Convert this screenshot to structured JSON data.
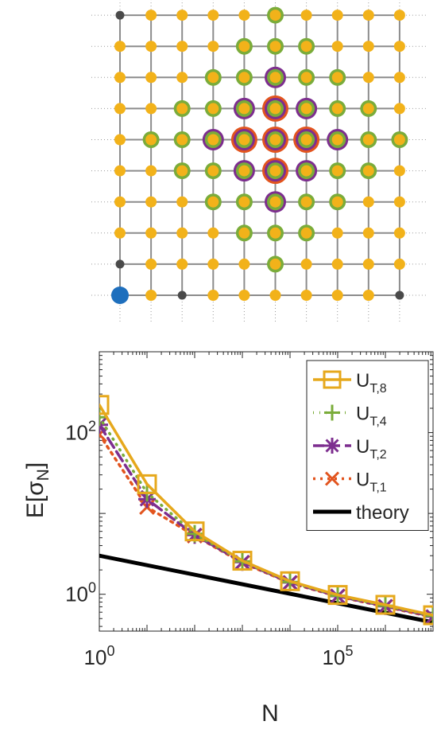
{
  "lattice": {
    "columns": 10,
    "rows": 10,
    "site_colors": {
      "inactive": "#4a4a4a",
      "active": "#f2b21a",
      "origin": "#1e6fbd",
      "U_T_8": "#f2b21a",
      "U_T_4": "#7aac3a",
      "U_T_2": "#7d2e8f",
      "U_T_1": "#e2541e"
    },
    "inactive_sites": [
      [
        0,
        0
      ],
      [
        0,
        1
      ],
      [
        0,
        9
      ],
      [
        2,
        0
      ],
      [
        9,
        0
      ]
    ],
    "origin_site": [
      0,
      0
    ],
    "center_site": [
      5,
      5
    ],
    "rings": [
      {
        "series": "U_T,1",
        "sites": [
          [
            5,
            6
          ],
          [
            4,
            5
          ],
          [
            5,
            5
          ],
          [
            6,
            5
          ],
          [
            5,
            4
          ]
        ]
      },
      {
        "series": "U_T,2",
        "sites": [
          [
            5,
            7
          ],
          [
            4,
            6
          ],
          [
            5,
            6
          ],
          [
            6,
            6
          ],
          [
            3,
            5
          ],
          [
            4,
            5
          ],
          [
            5,
            5
          ],
          [
            6,
            5
          ],
          [
            7,
            5
          ],
          [
            4,
            4
          ],
          [
            5,
            4
          ],
          [
            6,
            4
          ],
          [
            5,
            3
          ]
        ]
      },
      {
        "series": "U_T,4",
        "sites": [
          [
            5,
            9
          ],
          [
            4,
            8
          ],
          [
            5,
            8
          ],
          [
            6,
            8
          ],
          [
            3,
            7
          ],
          [
            4,
            7
          ],
          [
            5,
            7
          ],
          [
            6,
            7
          ],
          [
            7,
            7
          ],
          [
            2,
            6
          ],
          [
            3,
            6
          ],
          [
            4,
            6
          ],
          [
            5,
            6
          ],
          [
            6,
            6
          ],
          [
            7,
            6
          ],
          [
            8,
            6
          ],
          [
            1,
            5
          ],
          [
            2,
            5
          ],
          [
            3,
            5
          ],
          [
            4,
            5
          ],
          [
            5,
            5
          ],
          [
            6,
            5
          ],
          [
            7,
            5
          ],
          [
            8,
            5
          ],
          [
            9,
            5
          ],
          [
            2,
            4
          ],
          [
            3,
            4
          ],
          [
            4,
            4
          ],
          [
            5,
            4
          ],
          [
            6,
            4
          ],
          [
            7,
            4
          ],
          [
            8,
            4
          ],
          [
            3,
            3
          ],
          [
            4,
            3
          ],
          [
            5,
            3
          ],
          [
            6,
            3
          ],
          [
            7,
            3
          ],
          [
            4,
            2
          ],
          [
            5,
            2
          ],
          [
            6,
            2
          ],
          [
            5,
            1
          ]
        ]
      }
    ]
  },
  "chart_data": {
    "type": "line",
    "x_scale": "log",
    "y_scale": "log",
    "xlabel": "N",
    "ylabel_main": "E[σ",
    "ylabel_sub": "N",
    "ylabel_close": "]",
    "xlim": [
      1,
      10000000
    ],
    "ylim": [
      0.35,
      1000
    ],
    "x_ticks": [
      {
        "value": 1,
        "base": "10",
        "exp": "0"
      },
      {
        "value": 100000,
        "base": "10",
        "exp": "5"
      }
    ],
    "y_ticks": [
      {
        "value": 1,
        "base": "10",
        "exp": "0"
      },
      {
        "value": 100,
        "base": "10",
        "exp": "2"
      }
    ],
    "grid": false,
    "legend_position": "top-right",
    "series": [
      {
        "name": "U",
        "sub": "T,8",
        "color": "#e6a81c",
        "marker": "square",
        "dash": "",
        "width": 3.5,
        "x": [
          1,
          10,
          100,
          1000,
          10000,
          100000,
          1000000,
          10000000
        ],
        "y": [
          220,
          23,
          6.0,
          2.6,
          1.45,
          0.98,
          0.74,
          0.55
        ]
      },
      {
        "name": "U",
        "sub": "T,4",
        "color": "#7aac3a",
        "marker": "plus",
        "dash": "1,7",
        "width": 3.5,
        "x": [
          1,
          10,
          100,
          1000,
          10000,
          100000,
          1000000,
          10000000
        ],
        "y": [
          155,
          18,
          5.6,
          2.55,
          1.42,
          0.96,
          0.72,
          0.54
        ]
      },
      {
        "name": "U",
        "sub": "T,2",
        "color": "#7d2e8f",
        "marker": "asterisk",
        "dash": "14,6",
        "width": 3.5,
        "x": [
          1,
          10,
          100,
          1000,
          10000,
          100000,
          1000000,
          10000000
        ],
        "y": [
          125,
          15,
          5.4,
          2.5,
          1.4,
          0.95,
          0.71,
          0.53
        ]
      },
      {
        "name": "U",
        "sub": "T,1",
        "color": "#e2541e",
        "marker": "x",
        "dash": "3,6",
        "width": 3.5,
        "x": [
          1,
          10,
          100,
          1000,
          10000,
          100000,
          1000000,
          10000000
        ],
        "y": [
          95,
          12,
          5.3,
          2.45,
          1.38,
          0.94,
          0.7,
          0.52
        ]
      },
      {
        "name": "theory",
        "sub": "",
        "color": "#000000",
        "marker": "none",
        "dash": "",
        "width": 5,
        "x": [
          1,
          10000000
        ],
        "y": [
          3.0,
          0.45
        ]
      }
    ]
  }
}
